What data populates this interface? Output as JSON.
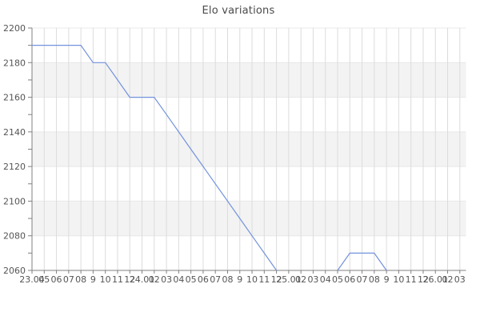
{
  "chart_data": {
    "type": "line",
    "title": "Elo variations",
    "xlabel": "",
    "ylabel": "",
    "ylim": [
      2060,
      2200
    ],
    "y_major_step": 20,
    "y_minor_step": 10,
    "y_tick_labels": [
      "2060",
      "2080",
      "2100",
      "2120",
      "2140",
      "2160",
      "2180",
      "2200"
    ],
    "x_tick_labels": [
      "23.04",
      "05",
      "06",
      "07",
      "08",
      "9",
      "10",
      "11",
      "12",
      "24.01",
      "02",
      "03",
      "04",
      "05",
      "06",
      "07",
      "08",
      "9",
      "10",
      "11",
      "12",
      "25.01",
      "02",
      "03",
      "04",
      "05",
      "06",
      "07",
      "08",
      "9",
      "10",
      "11",
      "12",
      "26.01",
      "02",
      "03"
    ],
    "grid": "on",
    "legend": "none",
    "series": [
      {
        "name": "Elo",
        "segments": [
          [
            [
              0,
              2190
            ],
            [
              1,
              2190
            ],
            [
              2,
              2190
            ],
            [
              3,
              2190
            ],
            [
              4,
              2190
            ],
            [
              5,
              2180
            ],
            [
              6,
              2180
            ],
            [
              7,
              2170
            ],
            [
              8,
              2160
            ],
            [
              9,
              2160
            ],
            [
              10,
              2160
            ],
            [
              11,
              2150
            ],
            [
              12,
              2140
            ],
            [
              13,
              2130
            ],
            [
              14,
              2120
            ],
            [
              15,
              2110
            ],
            [
              16,
              2100
            ],
            [
              17,
              2090
            ],
            [
              18,
              2080
            ],
            [
              19,
              2070
            ],
            [
              20,
              2060
            ]
          ],
          [
            [
              25,
              2060
            ],
            [
              26,
              2070
            ],
            [
              27,
              2070
            ],
            [
              28,
              2070
            ],
            [
              29,
              2060
            ]
          ]
        ]
      }
    ],
    "colors": {
      "line": "#7393dd",
      "band": "#f3f3f3",
      "v_grid": "#dcdcdc",
      "h_grid": "#e8e8e8",
      "axis": "#808080",
      "tick": "#808080",
      "label": "#555555",
      "title": "#4a4a4a",
      "background": "#ffffff"
    }
  }
}
